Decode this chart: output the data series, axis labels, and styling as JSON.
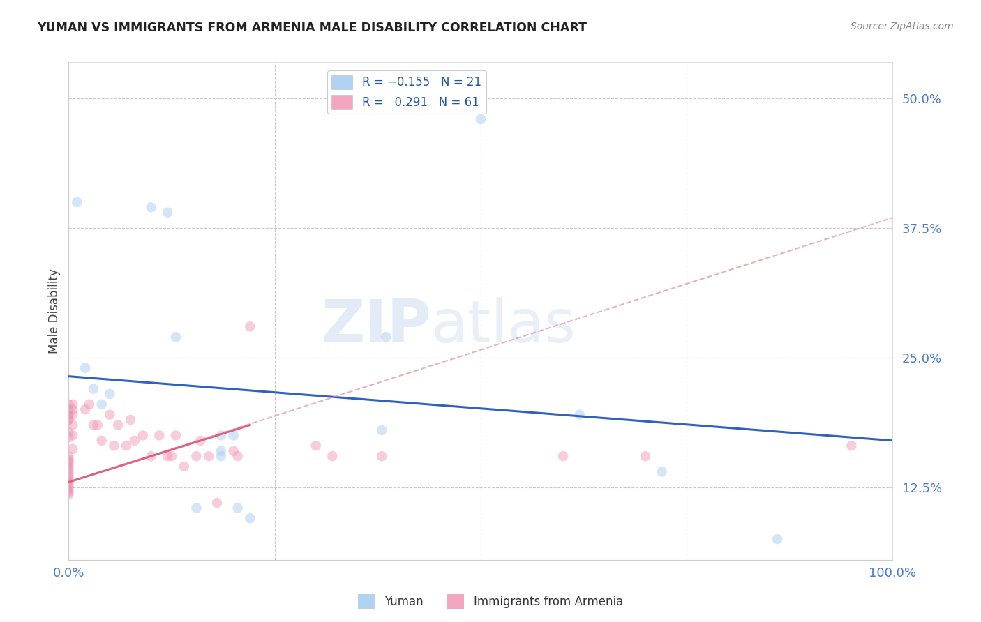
{
  "title": "YUMAN VS IMMIGRANTS FROM ARMENIA MALE DISABILITY CORRELATION CHART",
  "source": "Source: ZipAtlas.com",
  "ylabel_label": "Male Disability",
  "legend_title_blue": "Yuman",
  "legend_title_pink": "Immigrants from Armenia",
  "watermark_1": "ZIP",
  "watermark_2": "atlas",
  "blue_scatter_x": [
    0.01,
    0.1,
    0.12,
    0.13,
    0.385,
    0.02,
    0.03,
    0.04,
    0.05,
    0.62,
    0.72,
    0.185,
    0.2,
    0.185,
    0.155,
    0.5,
    0.205,
    0.38,
    0.86,
    0.22,
    0.185
  ],
  "blue_scatter_y": [
    0.4,
    0.395,
    0.39,
    0.27,
    0.27,
    0.24,
    0.22,
    0.205,
    0.215,
    0.195,
    0.14,
    0.175,
    0.175,
    0.16,
    0.105,
    0.48,
    0.105,
    0.18,
    0.075,
    0.095,
    0.155
  ],
  "pink_scatter_x": [
    0.0,
    0.0,
    0.0,
    0.0,
    0.0,
    0.0,
    0.0,
    0.0,
    0.0,
    0.0,
    0.0,
    0.0,
    0.0,
    0.0,
    0.0,
    0.0,
    0.0,
    0.0,
    0.0,
    0.0,
    0.0,
    0.0,
    0.0,
    0.0,
    0.005,
    0.005,
    0.005,
    0.005,
    0.005,
    0.005,
    0.02,
    0.025,
    0.03,
    0.035,
    0.04,
    0.05,
    0.055,
    0.06,
    0.07,
    0.075,
    0.08,
    0.09,
    0.1,
    0.11,
    0.12,
    0.125,
    0.13,
    0.14,
    0.155,
    0.16,
    0.17,
    0.18,
    0.2,
    0.205,
    0.22,
    0.3,
    0.32,
    0.38,
    0.6,
    0.7,
    0.95
  ],
  "pink_scatter_y": [
    0.155,
    0.152,
    0.15,
    0.148,
    0.145,
    0.143,
    0.14,
    0.137,
    0.135,
    0.132,
    0.13,
    0.127,
    0.125,
    0.122,
    0.12,
    0.118,
    0.173,
    0.178,
    0.19,
    0.195,
    0.205,
    0.2,
    0.195,
    0.19,
    0.2,
    0.205,
    0.195,
    0.185,
    0.175,
    0.162,
    0.2,
    0.205,
    0.185,
    0.185,
    0.17,
    0.195,
    0.165,
    0.185,
    0.165,
    0.19,
    0.17,
    0.175,
    0.155,
    0.175,
    0.155,
    0.155,
    0.175,
    0.145,
    0.155,
    0.17,
    0.155,
    0.11,
    0.16,
    0.155,
    0.28,
    0.165,
    0.155,
    0.155,
    0.155,
    0.155,
    0.165
  ],
  "blue_line_x": [
    0.0,
    1.0
  ],
  "blue_line_y": [
    0.232,
    0.17
  ],
  "pink_solid_line_x": [
    0.0,
    0.22
  ],
  "pink_solid_line_y": [
    0.13,
    0.185
  ],
  "pink_dashed_line_x": [
    0.0,
    1.0
  ],
  "pink_dashed_line_y": [
    0.13,
    0.385
  ],
  "scatter_size": 110,
  "scatter_alpha": 0.45,
  "blue_color": "#9ec8f0",
  "pink_color": "#f090b0",
  "blue_line_color": "#3060c0",
  "pink_solid_line_color": "#e06080",
  "pink_dashed_line_color": "#e090a0",
  "xlim": [
    0.0,
    1.0
  ],
  "ylim": [
    0.055,
    0.535
  ],
  "bg_color": "#ffffff",
  "grid_color": "#c8c8c8",
  "yticks": [
    0.125,
    0.25,
    0.375,
    0.5
  ],
  "xticks": [
    0.0,
    0.25,
    0.5,
    0.75,
    1.0
  ]
}
